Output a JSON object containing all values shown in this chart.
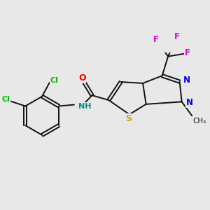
{
  "background_color": "#e8e8e8",
  "figsize": [
    3.0,
    3.0
  ],
  "dpi": 100,
  "bond_lw": 1.4,
  "bond_color": "#111111",
  "atom_colors": {
    "Cl": "#00bb00",
    "O": "#ff0000",
    "NH": "#009090",
    "N": "#0000ee",
    "S": "#bbaa00",
    "F": "#dd00dd",
    "C": "#111111"
  }
}
